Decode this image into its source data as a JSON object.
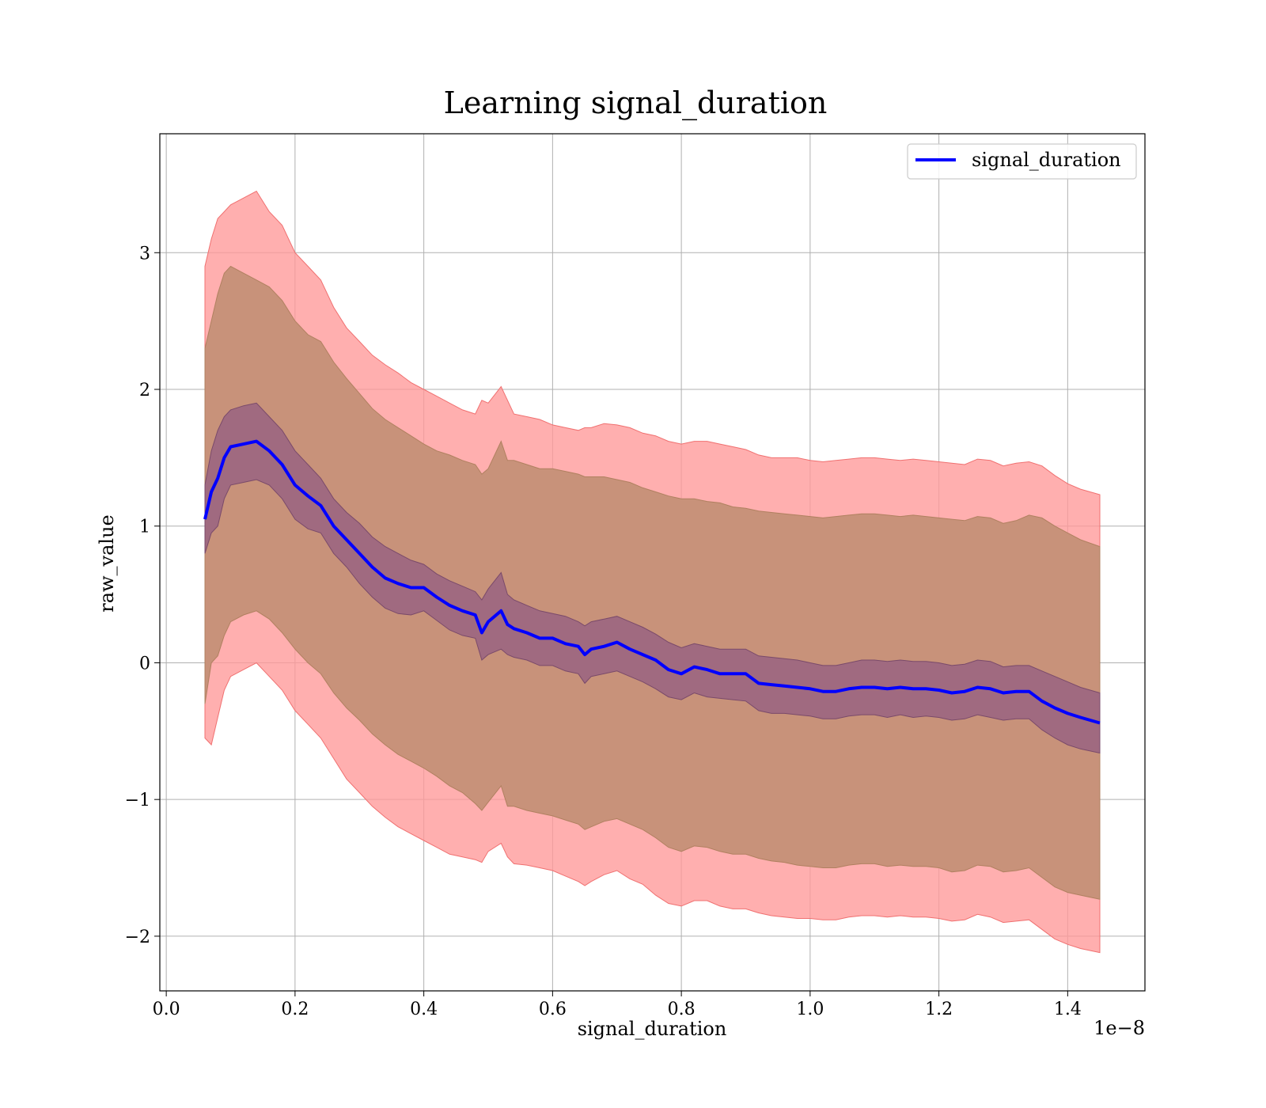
{
  "chart_data": {
    "type": "line",
    "title": "Learning signal_duration",
    "xlabel": "signal_duration",
    "ylabel": "raw_value",
    "x_offset_text": "1e−8",
    "xlim": [
      -0.01,
      1.52
    ],
    "ylim": [
      -2.4,
      3.87
    ],
    "x_ticks": [
      0.0,
      0.2,
      0.4,
      0.6,
      0.8,
      1.0,
      1.2,
      1.4
    ],
    "x_tick_labels": [
      "0.0",
      "0.2",
      "0.4",
      "0.6",
      "0.8",
      "1.0",
      "1.2",
      "1.4"
    ],
    "y_ticks": [
      -2,
      -1,
      0,
      1,
      2,
      3
    ],
    "y_tick_labels": [
      "−2",
      "−1",
      "0",
      "1",
      "2",
      "3"
    ],
    "grid": true,
    "legend": {
      "position": "top-right",
      "entries": [
        "signal_duration"
      ]
    },
    "colors": {
      "line": "#0000ff",
      "outer_band": "#ff9999",
      "inner_band": "#a06a80",
      "mid_band": "#c8927a",
      "grid": "#b0b0b0"
    },
    "series": [
      {
        "name": "signal_duration",
        "x": [
          0.06,
          0.07,
          0.08,
          0.09,
          0.1,
          0.12,
          0.14,
          0.16,
          0.18,
          0.2,
          0.22,
          0.24,
          0.26,
          0.28,
          0.3,
          0.32,
          0.34,
          0.36,
          0.38,
          0.4,
          0.42,
          0.44,
          0.46,
          0.48,
          0.49,
          0.5,
          0.52,
          0.53,
          0.54,
          0.56,
          0.58,
          0.6,
          0.62,
          0.64,
          0.65,
          0.66,
          0.68,
          0.7,
          0.72,
          0.74,
          0.76,
          0.78,
          0.8,
          0.82,
          0.84,
          0.86,
          0.88,
          0.9,
          0.92,
          0.94,
          0.96,
          0.98,
          1.0,
          1.02,
          1.04,
          1.06,
          1.08,
          1.1,
          1.12,
          1.14,
          1.16,
          1.18,
          1.2,
          1.22,
          1.24,
          1.26,
          1.28,
          1.3,
          1.32,
          1.34,
          1.36,
          1.38,
          1.4,
          1.42,
          1.45
        ],
        "y": [
          1.05,
          1.25,
          1.35,
          1.5,
          1.58,
          1.6,
          1.62,
          1.55,
          1.45,
          1.3,
          1.22,
          1.15,
          1.0,
          0.9,
          0.8,
          0.7,
          0.62,
          0.58,
          0.55,
          0.55,
          0.48,
          0.42,
          0.38,
          0.35,
          0.22,
          0.3,
          0.38,
          0.28,
          0.25,
          0.22,
          0.18,
          0.18,
          0.14,
          0.12,
          0.06,
          0.1,
          0.12,
          0.15,
          0.1,
          0.06,
          0.02,
          -0.05,
          -0.08,
          -0.03,
          -0.05,
          -0.08,
          -0.08,
          -0.08,
          -0.15,
          -0.16,
          -0.17,
          -0.18,
          -0.19,
          -0.21,
          -0.21,
          -0.19,
          -0.18,
          -0.18,
          -0.19,
          -0.18,
          -0.19,
          -0.19,
          -0.2,
          -0.22,
          -0.21,
          -0.18,
          -0.19,
          -0.22,
          -0.21,
          -0.21,
          -0.28,
          -0.33,
          -0.37,
          -0.4,
          -0.44
        ],
        "inner_upper": [
          1.3,
          1.55,
          1.7,
          1.8,
          1.85,
          1.88,
          1.9,
          1.8,
          1.7,
          1.55,
          1.45,
          1.35,
          1.2,
          1.1,
          1.02,
          0.92,
          0.85,
          0.8,
          0.75,
          0.72,
          0.65,
          0.6,
          0.56,
          0.52,
          0.46,
          0.54,
          0.66,
          0.5,
          0.46,
          0.42,
          0.38,
          0.36,
          0.34,
          0.3,
          0.27,
          0.3,
          0.32,
          0.34,
          0.3,
          0.26,
          0.21,
          0.15,
          0.11,
          0.14,
          0.12,
          0.1,
          0.1,
          0.1,
          0.05,
          0.04,
          0.03,
          0.02,
          0.0,
          -0.02,
          -0.02,
          0.0,
          0.02,
          0.02,
          0.01,
          0.02,
          0.01,
          0.01,
          0.0,
          -0.02,
          -0.01,
          0.02,
          0.01,
          -0.03,
          -0.02,
          -0.02,
          -0.06,
          -0.1,
          -0.14,
          -0.18,
          -0.22
        ],
        "inner_lower": [
          0.8,
          0.95,
          1.0,
          1.2,
          1.3,
          1.32,
          1.34,
          1.3,
          1.2,
          1.05,
          0.98,
          0.95,
          0.8,
          0.7,
          0.58,
          0.48,
          0.4,
          0.36,
          0.35,
          0.38,
          0.31,
          0.24,
          0.2,
          0.18,
          0.02,
          0.06,
          0.1,
          0.06,
          0.04,
          0.02,
          -0.02,
          -0.02,
          -0.06,
          -0.08,
          -0.15,
          -0.1,
          -0.08,
          -0.06,
          -0.1,
          -0.14,
          -0.19,
          -0.25,
          -0.27,
          -0.22,
          -0.25,
          -0.26,
          -0.27,
          -0.28,
          -0.35,
          -0.37,
          -0.37,
          -0.38,
          -0.39,
          -0.41,
          -0.41,
          -0.39,
          -0.38,
          -0.38,
          -0.4,
          -0.38,
          -0.4,
          -0.39,
          -0.4,
          -0.42,
          -0.41,
          -0.38,
          -0.4,
          -0.42,
          -0.41,
          -0.41,
          -0.49,
          -0.55,
          -0.6,
          -0.63,
          -0.66
        ],
        "mid_upper": [
          2.3,
          2.5,
          2.7,
          2.85,
          2.9,
          2.85,
          2.8,
          2.75,
          2.65,
          2.5,
          2.4,
          2.35,
          2.2,
          2.08,
          1.97,
          1.86,
          1.78,
          1.72,
          1.66,
          1.6,
          1.55,
          1.52,
          1.48,
          1.45,
          1.38,
          1.42,
          1.62,
          1.48,
          1.48,
          1.45,
          1.42,
          1.42,
          1.4,
          1.38,
          1.36,
          1.36,
          1.36,
          1.34,
          1.32,
          1.28,
          1.25,
          1.22,
          1.2,
          1.2,
          1.18,
          1.17,
          1.14,
          1.13,
          1.11,
          1.1,
          1.09,
          1.08,
          1.07,
          1.06,
          1.07,
          1.08,
          1.09,
          1.09,
          1.08,
          1.07,
          1.08,
          1.07,
          1.06,
          1.05,
          1.04,
          1.07,
          1.06,
          1.02,
          1.04,
          1.08,
          1.06,
          1.0,
          0.95,
          0.9,
          0.85
        ],
        "mid_lower": [
          -0.3,
          0.0,
          0.05,
          0.2,
          0.3,
          0.35,
          0.38,
          0.32,
          0.22,
          0.1,
          0.0,
          -0.08,
          -0.22,
          -0.33,
          -0.42,
          -0.52,
          -0.6,
          -0.67,
          -0.72,
          -0.77,
          -0.83,
          -0.9,
          -0.95,
          -1.03,
          -1.08,
          -1.02,
          -0.9,
          -1.05,
          -1.05,
          -1.08,
          -1.1,
          -1.12,
          -1.15,
          -1.18,
          -1.22,
          -1.2,
          -1.16,
          -1.14,
          -1.18,
          -1.22,
          -1.28,
          -1.35,
          -1.38,
          -1.34,
          -1.35,
          -1.38,
          -1.4,
          -1.4,
          -1.43,
          -1.45,
          -1.46,
          -1.48,
          -1.49,
          -1.5,
          -1.5,
          -1.48,
          -1.47,
          -1.47,
          -1.49,
          -1.48,
          -1.49,
          -1.49,
          -1.5,
          -1.53,
          -1.52,
          -1.48,
          -1.49,
          -1.53,
          -1.52,
          -1.5,
          -1.57,
          -1.64,
          -1.68,
          -1.7,
          -1.73
        ],
        "outer_upper": [
          2.9,
          3.1,
          3.25,
          3.3,
          3.35,
          3.4,
          3.45,
          3.3,
          3.2,
          3.0,
          2.9,
          2.8,
          2.6,
          2.45,
          2.35,
          2.25,
          2.18,
          2.12,
          2.05,
          2.0,
          1.95,
          1.9,
          1.85,
          1.82,
          1.92,
          1.9,
          2.02,
          1.92,
          1.82,
          1.8,
          1.78,
          1.74,
          1.72,
          1.7,
          1.72,
          1.72,
          1.75,
          1.74,
          1.72,
          1.68,
          1.66,
          1.62,
          1.6,
          1.62,
          1.62,
          1.6,
          1.58,
          1.56,
          1.52,
          1.5,
          1.5,
          1.5,
          1.48,
          1.47,
          1.48,
          1.49,
          1.5,
          1.5,
          1.49,
          1.48,
          1.49,
          1.48,
          1.47,
          1.46,
          1.45,
          1.49,
          1.48,
          1.44,
          1.46,
          1.47,
          1.44,
          1.37,
          1.31,
          1.27,
          1.23
        ],
        "outer_lower": [
          -0.55,
          -0.6,
          -0.4,
          -0.2,
          -0.1,
          -0.05,
          0.0,
          -0.1,
          -0.2,
          -0.35,
          -0.45,
          -0.55,
          -0.7,
          -0.85,
          -0.95,
          -1.05,
          -1.13,
          -1.2,
          -1.25,
          -1.3,
          -1.35,
          -1.4,
          -1.42,
          -1.44,
          -1.46,
          -1.38,
          -1.32,
          -1.42,
          -1.47,
          -1.48,
          -1.5,
          -1.52,
          -1.56,
          -1.6,
          -1.63,
          -1.6,
          -1.55,
          -1.52,
          -1.58,
          -1.62,
          -1.7,
          -1.76,
          -1.78,
          -1.74,
          -1.74,
          -1.78,
          -1.8,
          -1.8,
          -1.83,
          -1.85,
          -1.86,
          -1.87,
          -1.87,
          -1.88,
          -1.88,
          -1.86,
          -1.85,
          -1.85,
          -1.86,
          -1.85,
          -1.86,
          -1.86,
          -1.87,
          -1.89,
          -1.88,
          -1.84,
          -1.86,
          -1.9,
          -1.89,
          -1.88,
          -1.95,
          -2.02,
          -2.06,
          -2.09,
          -2.12
        ]
      }
    ]
  }
}
